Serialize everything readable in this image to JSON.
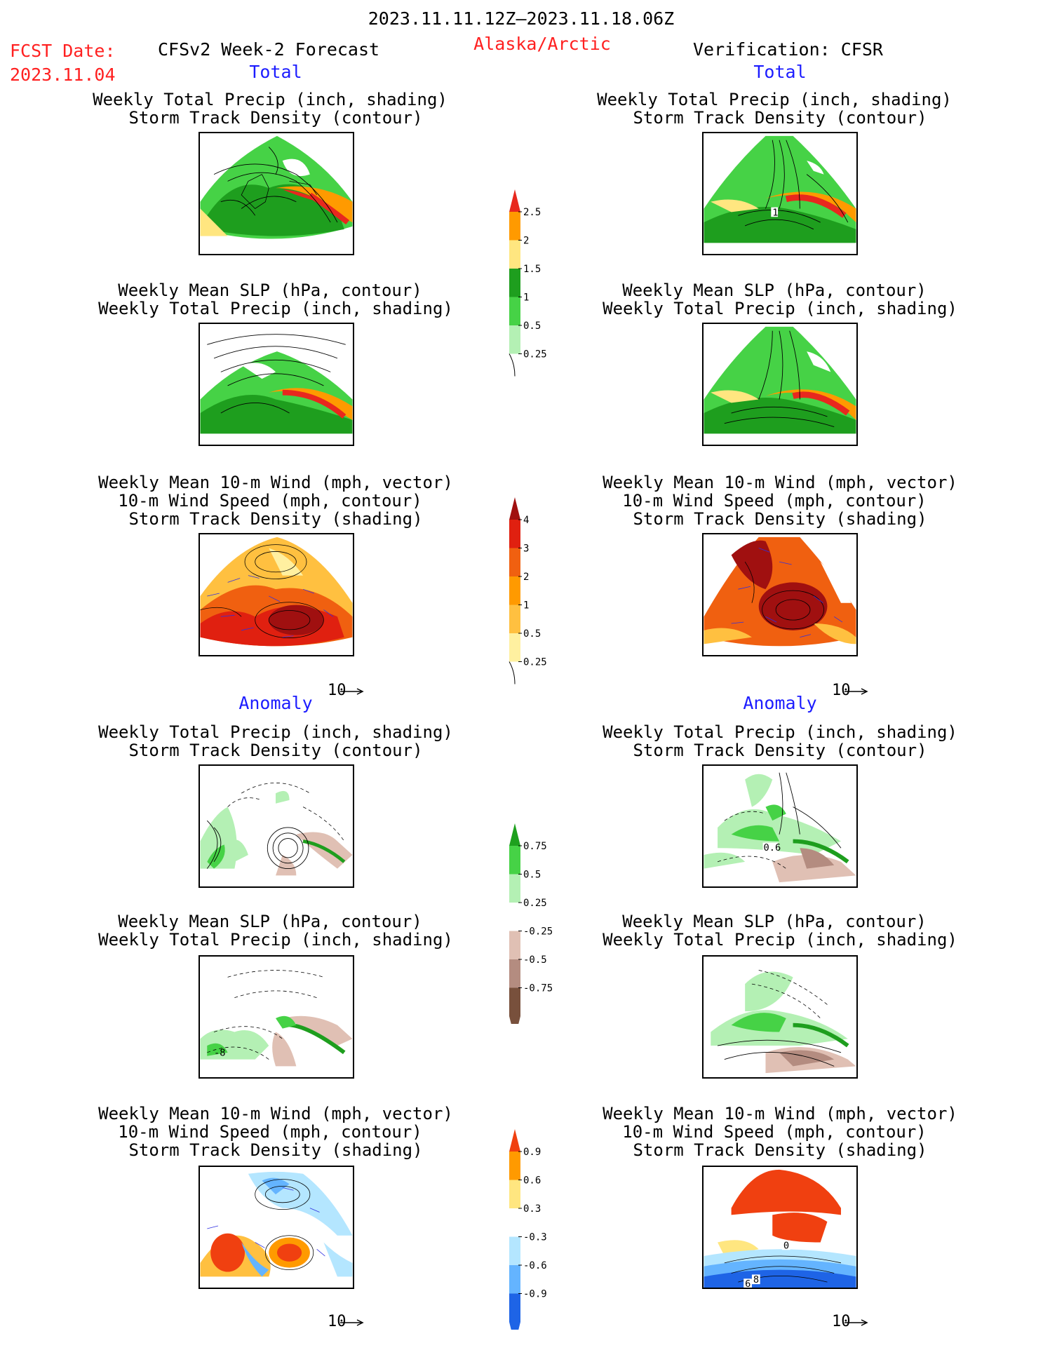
{
  "header": {
    "date_range": "2023.11.11.12Z–2023.11.18.06Z",
    "fcst_label": "FCST Date:",
    "fcst_date": "2023.11.04",
    "forecast_title": "CFSv2 Week-2 Forecast",
    "region": "Alaska/Arctic",
    "verification": "Verification: CFSR"
  },
  "sections": {
    "total": "Total",
    "anomaly": "Anomaly"
  },
  "panel_titles": {
    "precip_storm": [
      "Weekly Total Precip (inch, shading)",
      "Storm Track Density (contour)"
    ],
    "slp_precip": [
      "Weekly Mean SLP (hPa, contour)",
      "Weekly Total Precip (inch, shading)"
    ],
    "wind_storm": [
      "Weekly Mean 10-m Wind (mph, vector)",
      "10-m Wind Speed (mph, contour)",
      "Storm Track Density (shading)"
    ]
  },
  "vector_scale_label": "10",
  "colorbars": {
    "precip_total": {
      "labels": [
        "2.5",
        "2",
        "1.5",
        "1",
        "0.5",
        "0.25"
      ],
      "colors": [
        "#e8281e",
        "#ff9a00",
        "#ffe680",
        "#1e9e1e",
        "#46d246",
        "#b4f0b4"
      ]
    },
    "storm_total": {
      "labels": [
        "4",
        "3",
        "2",
        "1",
        "0.5",
        "0.25"
      ],
      "colors": [
        "#a01010",
        "#e02010",
        "#f06010",
        "#ff9a00",
        "#ffc040",
        "#fff0a0"
      ]
    },
    "precip_anom": {
      "labels": [
        "0.75",
        "0.5",
        "0.25",
        "-0.25",
        "-0.5",
        "-0.75"
      ],
      "colors": [
        "#1ea01e",
        "#46d246",
        "#b4f0b4",
        "#ffffff",
        "#e0c0b4",
        "#b48c80",
        "#78503c"
      ]
    },
    "storm_anom": {
      "labels": [
        "0.9",
        "0.6",
        "0.3",
        "-0.3",
        "-0.6",
        "-0.9"
      ],
      "colors": [
        "#f04010",
        "#ff9a00",
        "#ffe680",
        "#ffffff",
        "#b4e6ff",
        "#64b4ff",
        "#1e64e6"
      ]
    }
  },
  "contour_labels": {
    "fc_total_precip": "1",
    "vf_anom_precip": "0.6",
    "fc_anom_slp": "-8",
    "vf_anom_wind_a": "0",
    "vf_anom_wind_b": "8",
    "vf_anom_wind_c": "6"
  }
}
